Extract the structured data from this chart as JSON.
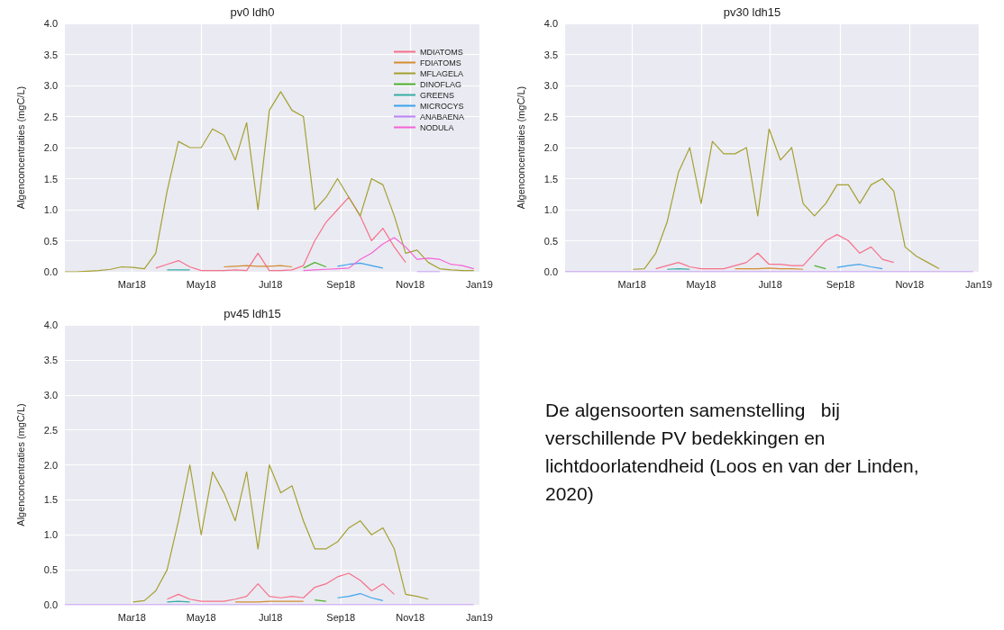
{
  "chart_data": [
    {
      "type": "line",
      "title": "pv0 ldh0",
      "ylabel": "Algenconcentraties (mgC/L)",
      "legend": "top right",
      "grid": true,
      "marker": "none",
      "line_style": "solid",
      "xlim": [
        "2018-01-01",
        "2019-01-01"
      ],
      "xticks": [
        {
          "value": "2018-03",
          "label": "Mar18"
        },
        {
          "value": "2018-05",
          "label": "May18"
        },
        {
          "value": "2018-07",
          "label": "Jul18"
        },
        {
          "value": "2018-09",
          "label": "Sep18"
        },
        {
          "value": "2018-11",
          "label": "Nov18"
        },
        {
          "value": "2019-01",
          "label": "Jan19"
        }
      ],
      "ylim": [
        0,
        4
      ],
      "yticks": [
        {
          "value": 0,
          "label": "0.0"
        },
        {
          "value": 0.5,
          "label": "0.5"
        },
        {
          "value": 1,
          "label": "1.0"
        },
        {
          "value": 1.5,
          "label": "1.5"
        },
        {
          "value": 2,
          "label": "2.0"
        },
        {
          "value": 2.5,
          "label": "2.5"
        },
        {
          "value": 3,
          "label": "3.0"
        },
        {
          "value": 3.5,
          "label": "3.5"
        },
        {
          "value": 4,
          "label": "4.0"
        }
      ],
      "x": [
        "2018-01-01",
        "2018-01-11",
        "2018-01-21",
        "2018-01-31",
        "2018-02-10",
        "2018-02-20",
        "2018-03-02",
        "2018-03-12",
        "2018-03-22",
        "2018-04-01",
        "2018-04-11",
        "2018-04-21",
        "2018-05-01",
        "2018-05-11",
        "2018-05-21",
        "2018-05-31",
        "2018-06-10",
        "2018-06-20",
        "2018-06-30",
        "2018-07-10",
        "2018-07-20",
        "2018-07-30",
        "2018-08-09",
        "2018-08-19",
        "2018-08-29",
        "2018-09-08",
        "2018-09-18",
        "2018-09-28",
        "2018-10-08",
        "2018-10-18",
        "2018-10-28",
        "2018-11-07",
        "2018-11-17",
        "2018-11-27",
        "2018-12-07",
        "2018-12-17",
        "2018-12-27"
      ],
      "series": [
        {
          "name": "MDIATOMS",
          "color": "#f77189",
          "values": [
            null,
            null,
            null,
            null,
            null,
            null,
            null,
            null,
            0.06,
            0.12,
            0.18,
            0.08,
            0.02,
            0.02,
            0.02,
            0.03,
            0.02,
            0.3,
            0.02,
            0.02,
            0.03,
            0.1,
            0.5,
            0.8,
            1.0,
            1.2,
            0.9,
            0.5,
            0.7,
            0.4,
            0.15,
            null,
            null,
            null,
            null,
            null,
            null
          ]
        },
        {
          "name": "FDIATOMS",
          "color": "#d58c32",
          "values": [
            null,
            null,
            null,
            null,
            null,
            null,
            null,
            null,
            null,
            null,
            null,
            null,
            null,
            null,
            0.08,
            0.09,
            0.1,
            0.09,
            0.09,
            0.1,
            0.08,
            null,
            null,
            null,
            null,
            null,
            null,
            null,
            null,
            null,
            null,
            null,
            null,
            null,
            null,
            null,
            null
          ]
        },
        {
          "name": "MFLAGELA",
          "color": "#a4a031",
          "values": [
            0,
            0,
            0.01,
            0.02,
            0.04,
            0.08,
            0.07,
            0.05,
            0.3,
            1.3,
            2.1,
            2.0,
            2.0,
            2.3,
            2.2,
            1.8,
            2.4,
            1.0,
            2.6,
            2.9,
            2.6,
            2.5,
            1.0,
            1.2,
            1.5,
            1.2,
            0.9,
            1.5,
            1.4,
            0.9,
            0.3,
            0.35,
            0.15,
            0.05,
            0.03,
            0.02,
            0.02
          ]
        },
        {
          "name": "DINOFLAG",
          "color": "#50b131",
          "values": [
            null,
            null,
            null,
            null,
            null,
            null,
            null,
            null,
            null,
            null,
            null,
            null,
            null,
            null,
            null,
            null,
            null,
            null,
            null,
            null,
            null,
            0.06,
            0.15,
            0.08,
            null,
            null,
            null,
            null,
            null,
            null,
            null,
            null,
            null,
            null,
            null,
            null,
            null
          ]
        },
        {
          "name": "GREENS",
          "color": "#36ada4",
          "values": [
            null,
            null,
            null,
            null,
            null,
            null,
            null,
            null,
            null,
            0.03,
            0.03,
            0.03,
            null,
            null,
            null,
            null,
            null,
            null,
            null,
            null,
            null,
            null,
            null,
            null,
            null,
            null,
            null,
            null,
            null,
            null,
            null,
            null,
            null,
            null,
            null,
            null,
            null
          ]
        },
        {
          "name": "MICROCYS",
          "color": "#3ba3ec",
          "values": [
            null,
            null,
            null,
            null,
            null,
            null,
            null,
            null,
            null,
            null,
            null,
            null,
            null,
            null,
            null,
            null,
            null,
            null,
            null,
            null,
            null,
            null,
            null,
            null,
            0.09,
            0.12,
            0.14,
            0.1,
            0.06,
            null,
            null,
            null,
            null,
            null,
            null,
            null,
            null
          ]
        },
        {
          "name": "ANABAENA",
          "color": "#bb83f4",
          "values": [
            null,
            null,
            null,
            null,
            null,
            null,
            null,
            null,
            null,
            null,
            null,
            null,
            null,
            null,
            null,
            null,
            null,
            null,
            null,
            null,
            null,
            null,
            null,
            null,
            null,
            null,
            null,
            null,
            null,
            null,
            null,
            0,
            0,
            0,
            null,
            null,
            null
          ]
        },
        {
          "name": "NODULA",
          "color": "#f564d4",
          "values": [
            null,
            null,
            null,
            null,
            null,
            null,
            null,
            null,
            null,
            null,
            null,
            null,
            null,
            null,
            null,
            null,
            null,
            null,
            null,
            null,
            null,
            0.02,
            0.03,
            0.04,
            0.05,
            0.06,
            0.2,
            0.3,
            0.45,
            0.55,
            0.4,
            0.2,
            0.22,
            0.2,
            0.12,
            0.1,
            0.05
          ]
        }
      ]
    },
    {
      "type": "line",
      "title": "pv30 ldh15",
      "ylabel": "Algenconcentraties (mgC/L)",
      "legend": false,
      "grid": true,
      "marker": "none",
      "line_style": "solid",
      "xlim": [
        "2018-01-01",
        "2019-01-01"
      ],
      "xticks": [
        {
          "value": "2018-03",
          "label": "Mar18"
        },
        {
          "value": "2018-05",
          "label": "May18"
        },
        {
          "value": "2018-07",
          "label": "Jul18"
        },
        {
          "value": "2018-09",
          "label": "Sep18"
        },
        {
          "value": "2018-11",
          "label": "Nov18"
        },
        {
          "value": "2019-01",
          "label": "Jan19"
        }
      ],
      "ylim": [
        0,
        4
      ],
      "yticks": [
        {
          "value": 0,
          "label": "0.0"
        },
        {
          "value": 0.5,
          "label": "0.5"
        },
        {
          "value": 1,
          "label": "1.0"
        },
        {
          "value": 1.5,
          "label": "1.5"
        },
        {
          "value": 2,
          "label": "2.0"
        },
        {
          "value": 2.5,
          "label": "2.5"
        },
        {
          "value": 3,
          "label": "3.0"
        },
        {
          "value": 3.5,
          "label": "3.5"
        },
        {
          "value": 4,
          "label": "4.0"
        }
      ],
      "x": [
        "2018-01-01",
        "2018-01-11",
        "2018-01-21",
        "2018-01-31",
        "2018-02-10",
        "2018-02-20",
        "2018-03-02",
        "2018-03-12",
        "2018-03-22",
        "2018-04-01",
        "2018-04-11",
        "2018-04-21",
        "2018-05-01",
        "2018-05-11",
        "2018-05-21",
        "2018-05-31",
        "2018-06-10",
        "2018-06-20",
        "2018-06-30",
        "2018-07-10",
        "2018-07-20",
        "2018-07-30",
        "2018-08-09",
        "2018-08-19",
        "2018-08-29",
        "2018-09-08",
        "2018-09-18",
        "2018-09-28",
        "2018-10-08",
        "2018-10-18",
        "2018-10-28",
        "2018-11-07",
        "2018-11-17",
        "2018-11-27",
        "2018-12-07",
        "2018-12-17",
        "2018-12-27"
      ],
      "series": [
        {
          "color": "#f77189",
          "values": [
            null,
            null,
            null,
            null,
            null,
            null,
            null,
            null,
            0.05,
            0.1,
            0.15,
            0.08,
            0.05,
            0.05,
            0.05,
            0.1,
            0.15,
            0.3,
            0.12,
            0.12,
            0.1,
            0.1,
            0.3,
            0.5,
            0.6,
            0.5,
            0.3,
            0.4,
            0.2,
            0.15,
            null,
            null,
            null,
            null,
            null,
            null,
            null
          ]
        },
        {
          "color": "#d58c32",
          "values": [
            null,
            null,
            null,
            null,
            null,
            null,
            null,
            null,
            null,
            null,
            null,
            null,
            null,
            null,
            null,
            0.05,
            0.05,
            0.05,
            0.06,
            0.05,
            0.05,
            0.04,
            null,
            null,
            null,
            null,
            null,
            null,
            null,
            null,
            null,
            null,
            null,
            null,
            null,
            null,
            null
          ]
        },
        {
          "color": "#a4a031",
          "values": [
            null,
            null,
            null,
            null,
            null,
            null,
            0.04,
            0.05,
            0.3,
            0.8,
            1.6,
            2.0,
            1.1,
            2.1,
            1.9,
            1.9,
            2.0,
            0.9,
            2.3,
            1.8,
            2.0,
            1.1,
            0.9,
            1.1,
            1.4,
            1.4,
            1.1,
            1.4,
            1.5,
            1.3,
            0.4,
            0.25,
            0.15,
            0.05,
            null,
            null,
            null
          ]
        },
        {
          "color": "#50b131",
          "values": [
            null,
            null,
            null,
            null,
            null,
            null,
            null,
            null,
            null,
            null,
            null,
            null,
            null,
            null,
            null,
            null,
            null,
            null,
            null,
            null,
            null,
            null,
            0.1,
            0.05,
            null,
            null,
            null,
            null,
            null,
            null,
            null,
            null,
            null,
            null,
            null,
            null,
            null
          ]
        },
        {
          "color": "#36ada4",
          "values": [
            null,
            null,
            null,
            null,
            null,
            null,
            null,
            null,
            null,
            0.04,
            0.05,
            0.04,
            null,
            null,
            null,
            null,
            null,
            null,
            null,
            null,
            null,
            null,
            null,
            null,
            null,
            null,
            null,
            null,
            null,
            null,
            null,
            null,
            null,
            null,
            null,
            null,
            null
          ]
        },
        {
          "color": "#3ba3ec",
          "values": [
            null,
            null,
            null,
            null,
            null,
            null,
            null,
            null,
            null,
            null,
            null,
            null,
            null,
            null,
            null,
            null,
            null,
            null,
            null,
            null,
            null,
            null,
            null,
            null,
            0.07,
            0.1,
            0.12,
            0.08,
            0.05,
            null,
            null,
            null,
            null,
            null,
            null,
            null,
            null
          ]
        },
        {
          "color": "#bb83f4",
          "values": [
            0,
            0,
            0,
            0,
            0,
            0,
            0,
            0,
            0,
            0,
            0,
            0,
            0,
            0,
            0,
            0,
            0,
            0,
            0,
            0,
            0,
            0,
            0,
            0,
            0,
            0,
            0,
            0,
            0,
            0,
            0,
            0,
            0,
            0,
            0,
            0,
            0
          ]
        }
      ]
    },
    {
      "type": "line",
      "title": "pv45 ldh15",
      "ylabel": "Algenconcentraties (mgC/L)",
      "legend": false,
      "grid": true,
      "marker": "none",
      "line_style": "solid",
      "xlim": [
        "2018-01-01",
        "2019-01-01"
      ],
      "xticks": [
        {
          "value": "2018-03",
          "label": "Mar18"
        },
        {
          "value": "2018-05",
          "label": "May18"
        },
        {
          "value": "2018-07",
          "label": "Jul18"
        },
        {
          "value": "2018-09",
          "label": "Sep18"
        },
        {
          "value": "2018-11",
          "label": "Nov18"
        },
        {
          "value": "2019-01",
          "label": "Jan19"
        }
      ],
      "ylim": [
        0,
        4
      ],
      "yticks": [
        {
          "value": 0,
          "label": "0.0"
        },
        {
          "value": 0.5,
          "label": "0.5"
        },
        {
          "value": 1,
          "label": "1.0"
        },
        {
          "value": 1.5,
          "label": "1.5"
        },
        {
          "value": 2,
          "label": "2.0"
        },
        {
          "value": 2.5,
          "label": "2.5"
        },
        {
          "value": 3,
          "label": "3.0"
        },
        {
          "value": 3.5,
          "label": "3.5"
        },
        {
          "value": 4,
          "label": "4.0"
        }
      ],
      "x": [
        "2018-01-01",
        "2018-01-11",
        "2018-01-21",
        "2018-01-31",
        "2018-02-10",
        "2018-02-20",
        "2018-03-02",
        "2018-03-12",
        "2018-03-22",
        "2018-04-01",
        "2018-04-11",
        "2018-04-21",
        "2018-05-01",
        "2018-05-11",
        "2018-05-21",
        "2018-05-31",
        "2018-06-10",
        "2018-06-20",
        "2018-06-30",
        "2018-07-10",
        "2018-07-20",
        "2018-07-30",
        "2018-08-09",
        "2018-08-19",
        "2018-08-29",
        "2018-09-08",
        "2018-09-18",
        "2018-09-28",
        "2018-10-08",
        "2018-10-18",
        "2018-10-28",
        "2018-11-07",
        "2018-11-17",
        "2018-11-27",
        "2018-12-07",
        "2018-12-17",
        "2018-12-27"
      ],
      "series": [
        {
          "color": "#f77189",
          "values": [
            null,
            null,
            null,
            null,
            null,
            null,
            null,
            null,
            null,
            0.08,
            0.15,
            0.08,
            0.05,
            0.05,
            0.05,
            0.08,
            0.12,
            0.3,
            0.12,
            0.1,
            0.12,
            0.1,
            0.25,
            0.3,
            0.4,
            0.45,
            0.35,
            0.2,
            0.3,
            0.15,
            null,
            null,
            null,
            null,
            null,
            null,
            null
          ]
        },
        {
          "color": "#d58c32",
          "values": [
            null,
            null,
            null,
            null,
            null,
            null,
            null,
            null,
            null,
            null,
            null,
            null,
            null,
            null,
            null,
            0.04,
            0.04,
            0.04,
            0.05,
            0.05,
            0.05,
            0.05,
            null,
            null,
            null,
            null,
            null,
            null,
            null,
            null,
            null,
            null,
            null,
            null,
            null,
            null,
            null
          ]
        },
        {
          "color": "#a4a031",
          "values": [
            null,
            null,
            null,
            null,
            null,
            null,
            0.04,
            0.06,
            0.2,
            0.5,
            1.2,
            2.0,
            1.0,
            1.9,
            1.6,
            1.2,
            1.9,
            0.8,
            2.0,
            1.6,
            1.7,
            1.2,
            0.8,
            0.8,
            0.9,
            1.1,
            1.2,
            1.0,
            1.1,
            0.8,
            0.15,
            0.12,
            0.08,
            null,
            null,
            null,
            null
          ]
        },
        {
          "color": "#50b131",
          "values": [
            null,
            null,
            null,
            null,
            null,
            null,
            null,
            null,
            null,
            null,
            null,
            null,
            null,
            null,
            null,
            null,
            null,
            null,
            null,
            null,
            null,
            null,
            0.07,
            0.05,
            null,
            null,
            null,
            null,
            null,
            null,
            null,
            null,
            null,
            null,
            null,
            null,
            null
          ]
        },
        {
          "color": "#36ada4",
          "values": [
            null,
            null,
            null,
            null,
            null,
            null,
            null,
            null,
            null,
            0.04,
            0.05,
            0.04,
            null,
            null,
            null,
            null,
            null,
            null,
            null,
            null,
            null,
            null,
            null,
            null,
            null,
            null,
            null,
            null,
            null,
            null,
            null,
            null,
            null,
            null,
            null,
            null,
            null
          ]
        },
        {
          "color": "#3ba3ec",
          "values": [
            null,
            null,
            null,
            null,
            null,
            null,
            null,
            null,
            null,
            null,
            null,
            null,
            null,
            null,
            null,
            null,
            null,
            null,
            null,
            null,
            null,
            null,
            null,
            null,
            0.1,
            0.12,
            0.16,
            0.1,
            0.06,
            null,
            null,
            null,
            null,
            null,
            null,
            null,
            null
          ]
        },
        {
          "color": "#bb83f4",
          "values": [
            0,
            0,
            0,
            0,
            0,
            0,
            0,
            0,
            0,
            0,
            0,
            0,
            0,
            0,
            0,
            0,
            0,
            0,
            0,
            0,
            0,
            0,
            0,
            0,
            0,
            0,
            0,
            0,
            0,
            0,
            0,
            0,
            0,
            0,
            0,
            0,
            0
          ]
        }
      ]
    },
    {
      "type": "other",
      "annotations": [
        "De algensoorten samenstelling   bij verschillende PV bedekkingen en lichtdoorlatendheid (Loos en van der Linden, 2020)"
      ]
    }
  ]
}
